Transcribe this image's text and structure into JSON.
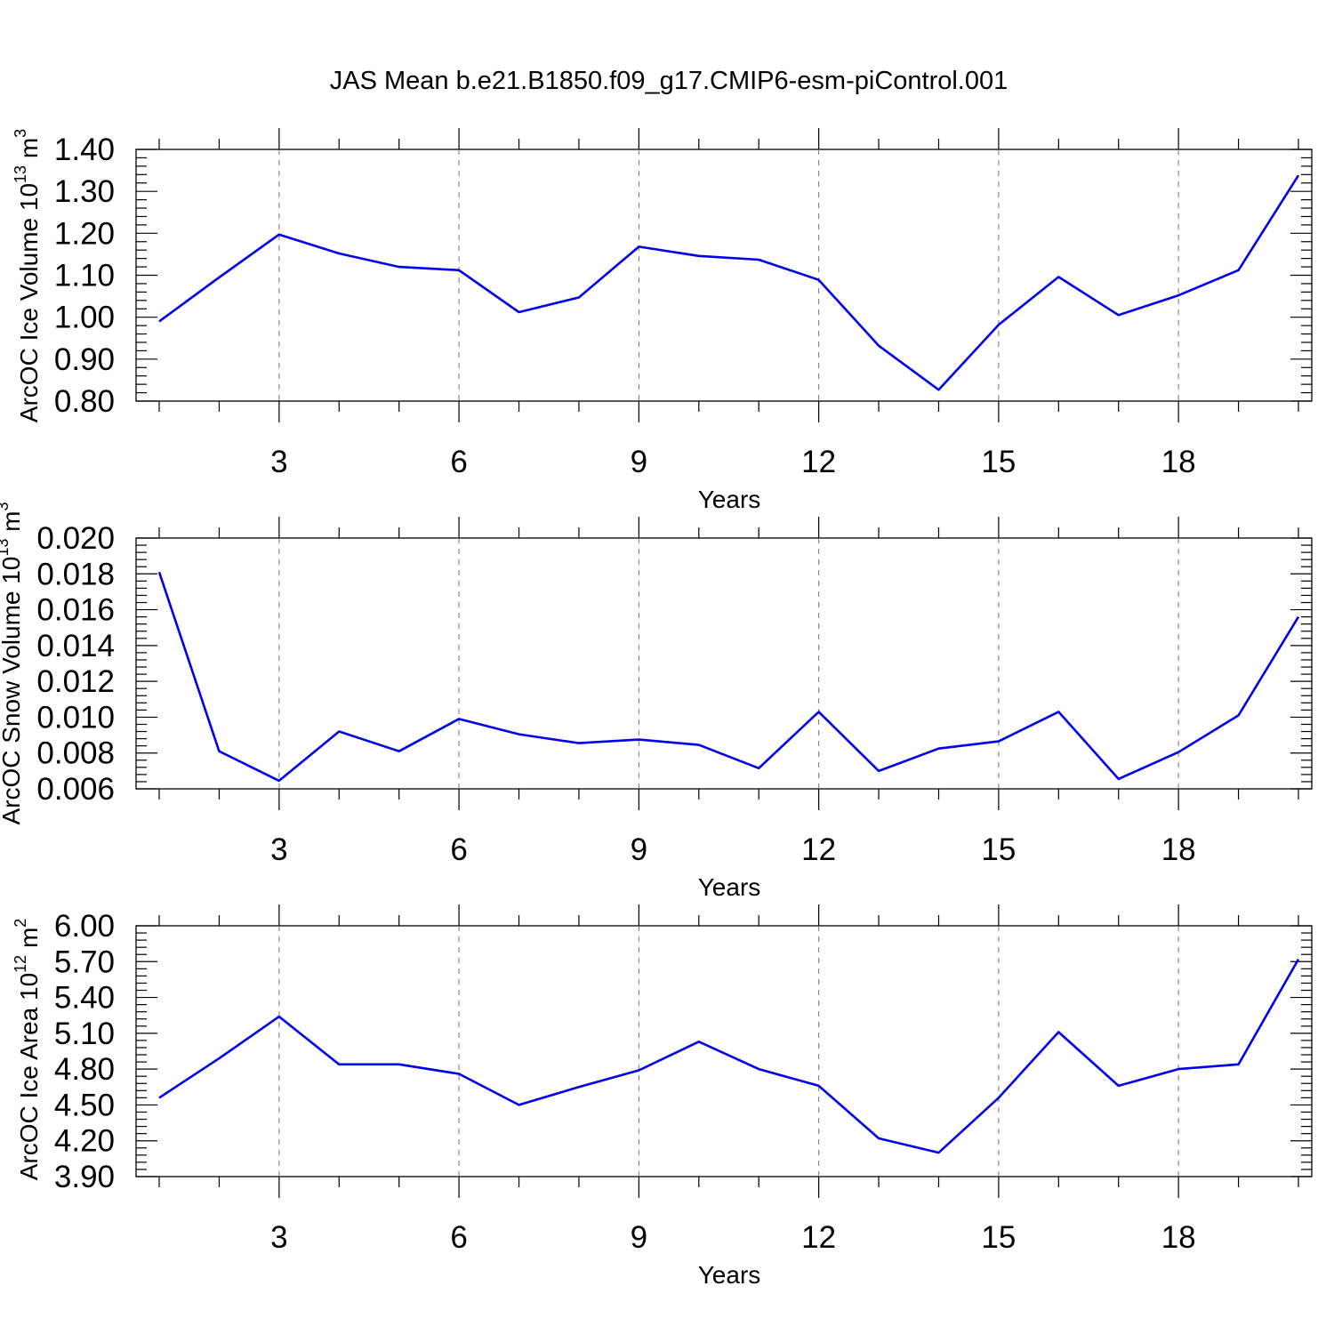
{
  "title": "JAS Mean b.e21.B1850.f09_g17.CMIP6-esm-piControl.001",
  "colors": {
    "series": "#0000ee",
    "axes": "#000000",
    "grid": "#777777",
    "background": "#ffffff"
  },
  "chart_data": [
    {
      "type": "line",
      "xlabel": "Years",
      "ylabel": {
        "text": "ArcOC Ice Volume 10",
        "exponent": "13",
        "unit": " m",
        "unit_exponent": "3"
      },
      "xlim": [
        1,
        20
      ],
      "ylim": [
        0.8,
        1.4
      ],
      "x_ticks": [
        3,
        6,
        9,
        12,
        15,
        18
      ],
      "x_tick_labels": [
        "3",
        "6",
        "9",
        "12",
        "15",
        "18"
      ],
      "y_ticks": [
        0.8,
        0.9,
        1.0,
        1.1,
        1.2,
        1.3,
        1.4
      ],
      "y_tick_labels": [
        "0.80",
        "0.90",
        "1.00",
        "1.10",
        "1.20",
        "1.30",
        "1.40"
      ],
      "grid": "vertical dashed at major x ticks",
      "x": [
        1,
        2,
        3,
        4,
        5,
        6,
        7,
        8,
        9,
        10,
        11,
        12,
        13,
        14,
        15,
        16,
        17,
        18,
        19,
        20
      ],
      "series": [
        {
          "values": [
            0.99,
            1.095,
            1.197,
            1.152,
            1.12,
            1.112,
            1.012,
            1.047,
            1.168,
            1.146,
            1.137,
            1.089,
            0.932,
            0.827,
            0.982,
            1.096,
            1.005,
            1.052,
            1.112,
            1.338
          ]
        }
      ]
    },
    {
      "type": "line",
      "xlabel": "Years",
      "ylabel": {
        "text": "ArcOC Snow Volume 10",
        "exponent": "13",
        "unit": " m",
        "unit_exponent": "3"
      },
      "xlim": [
        1,
        20
      ],
      "ylim": [
        0.006,
        0.02
      ],
      "x_ticks": [
        3,
        6,
        9,
        12,
        15,
        18
      ],
      "x_tick_labels": [
        "3",
        "6",
        "9",
        "12",
        "15",
        "18"
      ],
      "y_ticks": [
        0.006,
        0.008,
        0.01,
        0.012,
        0.014,
        0.016,
        0.018,
        0.02
      ],
      "y_tick_labels": [
        "0.006",
        "0.008",
        "0.010",
        "0.012",
        "0.014",
        "0.016",
        "0.018",
        "0.020"
      ],
      "grid": "vertical dashed at major x ticks",
      "x": [
        1,
        2,
        3,
        4,
        5,
        6,
        7,
        8,
        9,
        10,
        11,
        12,
        13,
        14,
        15,
        16,
        17,
        18,
        19,
        20
      ],
      "series": [
        {
          "values": [
            0.0181,
            0.0081,
            0.00645,
            0.0092,
            0.0081,
            0.0099,
            0.00905,
            0.00855,
            0.00875,
            0.00845,
            0.00715,
            0.0103,
            0.007,
            0.00825,
            0.00865,
            0.0103,
            0.00655,
            0.00805,
            0.0101,
            0.0156
          ]
        }
      ]
    },
    {
      "type": "line",
      "xlabel": "Years",
      "ylabel": {
        "text": "ArcOC Ice Area 10",
        "exponent": "12",
        "unit": " m",
        "unit_exponent": "2"
      },
      "xlim": [
        1,
        20
      ],
      "ylim": [
        3.9,
        6.0
      ],
      "x_ticks": [
        3,
        6,
        9,
        12,
        15,
        18
      ],
      "x_tick_labels": [
        "3",
        "6",
        "9",
        "12",
        "15",
        "18"
      ],
      "y_ticks": [
        3.9,
        4.2,
        4.5,
        4.8,
        5.1,
        5.4,
        5.7,
        6.0
      ],
      "y_tick_labels": [
        "3.90",
        "4.20",
        "4.50",
        "4.80",
        "5.10",
        "5.40",
        "5.70",
        "6.00"
      ],
      "grid": "vertical dashed at major x ticks",
      "x": [
        1,
        2,
        3,
        4,
        5,
        6,
        7,
        8,
        9,
        10,
        11,
        12,
        13,
        14,
        15,
        16,
        17,
        18,
        19,
        20
      ],
      "series": [
        {
          "values": [
            4.56,
            4.89,
            5.24,
            4.84,
            4.84,
            4.76,
            4.5,
            4.65,
            4.79,
            5.03,
            4.8,
            4.66,
            4.22,
            4.1,
            4.56,
            5.11,
            4.66,
            4.8,
            4.84,
            5.72
          ]
        }
      ]
    }
  ]
}
